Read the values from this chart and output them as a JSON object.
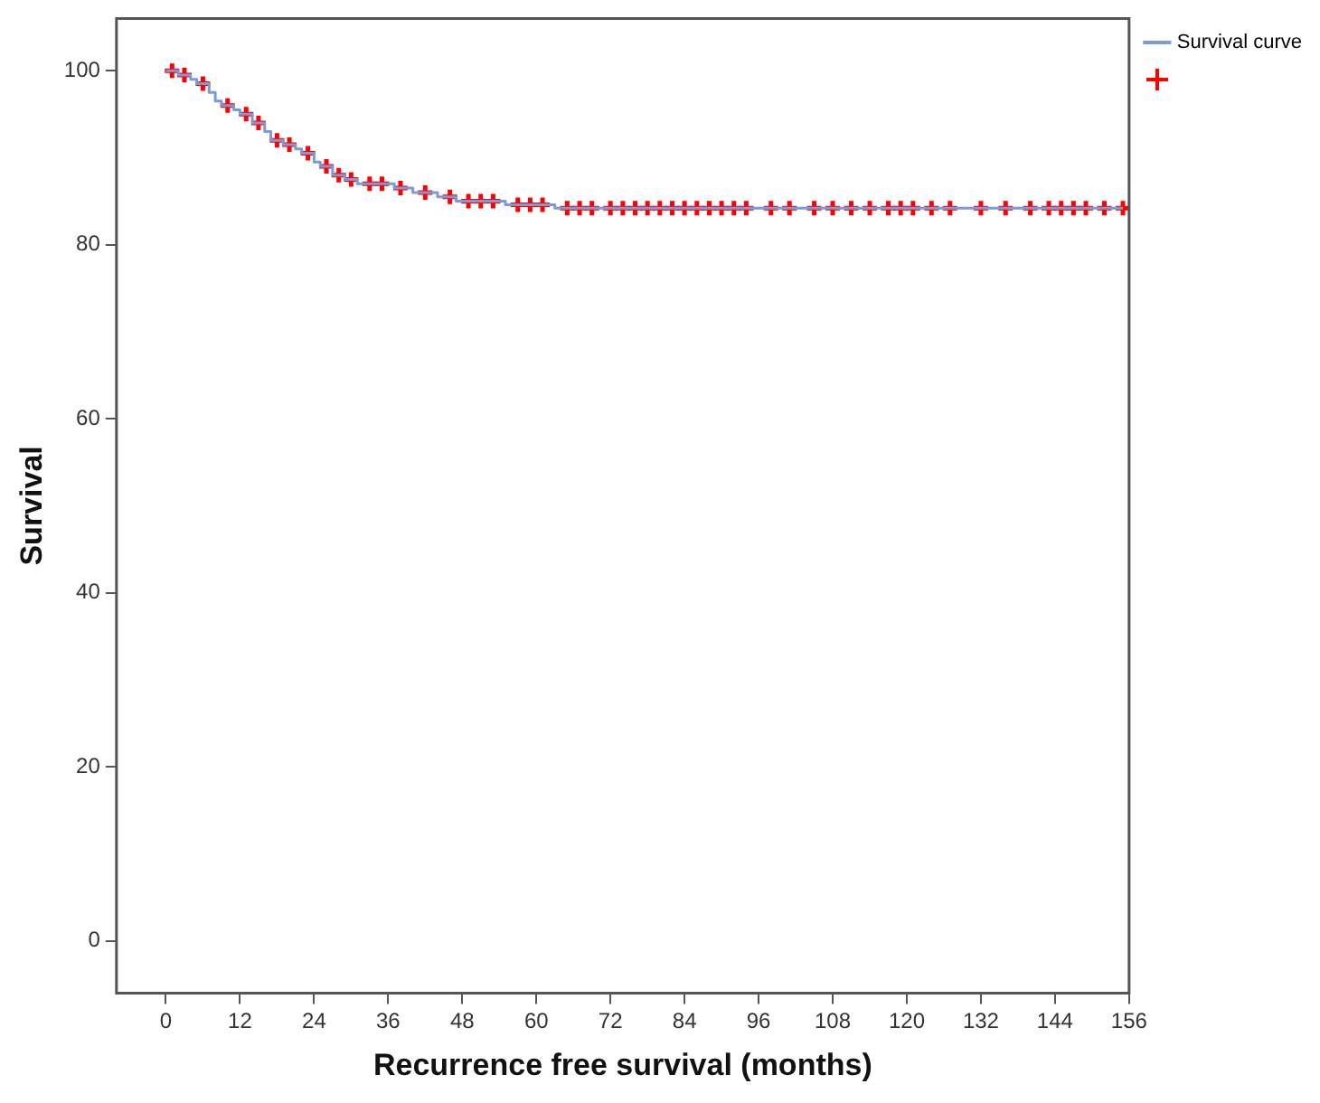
{
  "chart_data": {
    "type": "step",
    "xlabel": "Recurrence free survival (months)",
    "ylabel": "Survival",
    "xlim": [
      -8,
      156
    ],
    "xticks": [
      0,
      12,
      24,
      36,
      48,
      60,
      72,
      84,
      96,
      108,
      120,
      132,
      144,
      156
    ],
    "ylim": [
      -6,
      106
    ],
    "yticks": [
      0,
      20,
      40,
      60,
      80,
      100
    ],
    "grid": false,
    "legend": "top right",
    "series": [
      {
        "name": "Survival curve",
        "type": "step",
        "color": "#7a9ad8",
        "marker": "none",
        "x": [
          0,
          2,
          4,
          5,
          7,
          8,
          9,
          11,
          12,
          14,
          16,
          17,
          19,
          21,
          22,
          24,
          25,
          27,
          29,
          31,
          37,
          40,
          44,
          47,
          55,
          63,
          155
        ],
        "values": [
          100,
          99.5,
          99,
          98.5,
          97.5,
          96.5,
          96,
          95.5,
          95,
          94,
          93,
          92,
          91.5,
          91,
          90.5,
          89.5,
          89,
          88,
          87.5,
          87,
          86.5,
          86,
          85.5,
          85,
          84.6,
          84.2,
          84.2
        ]
      },
      {
        "type": "scatter",
        "color": "#ff0000",
        "marker": "cross",
        "x": [
          1,
          3,
          6,
          10,
          13,
          15,
          18,
          20,
          23,
          26,
          28,
          30,
          33,
          35,
          38,
          42,
          46,
          49,
          51,
          53,
          57,
          59,
          61,
          65,
          67,
          69,
          72,
          74,
          76,
          78,
          80,
          82,
          84,
          86,
          88,
          90,
          92,
          94,
          98,
          101,
          105,
          108,
          111,
          114,
          117,
          119,
          121,
          124,
          127,
          132,
          136,
          140,
          143,
          145,
          147,
          149,
          152,
          155
        ],
        "values": [
          100,
          99.5,
          98.5,
          96,
          95,
          94,
          92,
          91.5,
          90.5,
          89,
          88,
          87.5,
          87,
          87,
          86.5,
          86,
          85.5,
          85,
          85,
          85,
          84.6,
          84.6,
          84.6,
          84.2,
          84.2,
          84.2,
          84.2,
          84.2,
          84.2,
          84.2,
          84.2,
          84.2,
          84.2,
          84.2,
          84.2,
          84.2,
          84.2,
          84.2,
          84.2,
          84.2,
          84.2,
          84.2,
          84.2,
          84.2,
          84.2,
          84.2,
          84.2,
          84.2,
          84.2,
          84.2,
          84.2,
          84.2,
          84.2,
          84.2,
          84.2,
          84.2,
          84.2,
          84.2
        ]
      }
    ]
  }
}
